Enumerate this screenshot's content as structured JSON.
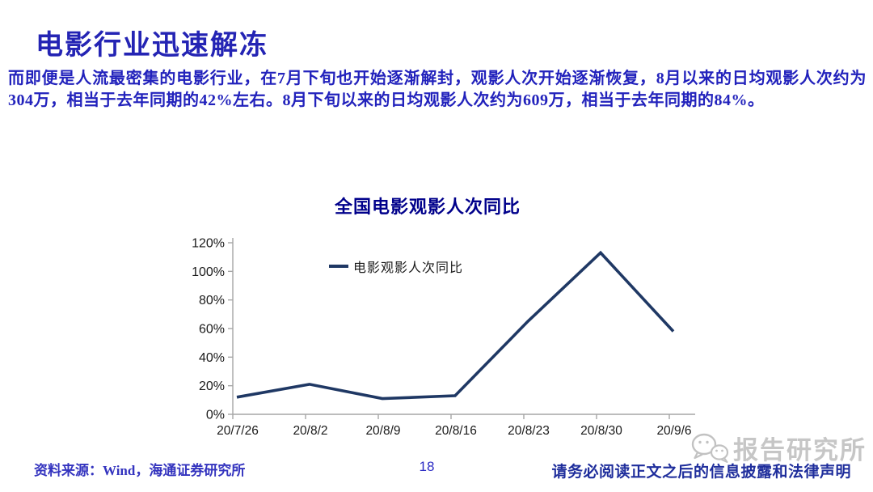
{
  "page": {
    "title": "电影行业迅速解冻",
    "body": "而即便是人流最密集的电影行业，在7月下旬也开始逐渐解封，观影人次开始逐渐恢复，8月以来的日均观影人次约为304万，相当于去年同期的42%左右。8月下旬以来的日均观影人次约为609万，相当于去年同期的84%。"
  },
  "chart_data": {
    "type": "line",
    "title": "全国电影观影人次同比",
    "categories": [
      "20/7/26",
      "20/8/2",
      "20/8/9",
      "20/8/16",
      "20/8/23",
      "20/8/30",
      "20/9/6"
    ],
    "series": [
      {
        "name": "电影观影人次同比",
        "values": [
          12,
          21,
          11,
          13,
          65,
          113,
          58
        ]
      }
    ],
    "ylim": [
      0,
      120
    ],
    "ytick_step": 20,
    "ytick_suffix": "%",
    "grid": false,
    "legend_position": "inside-top-left",
    "line_color": "#1F3864",
    "axis_color": "#A6A6A6",
    "tick_label_color": "#1A1A1A"
  },
  "footer": {
    "source": "资料来源：Wind，海通证券研究所",
    "page_number": "18",
    "disclaimer": "请务必阅读正文之后的信息披露和法律声明",
    "watermark": "报告研究所"
  },
  "colors": {
    "heading_blue": "#2424B4",
    "body_blue": "#2222BC",
    "chart_title_navy": "#00008B",
    "line_navy": "#1F3864",
    "source_blue": "#3434BF",
    "disclaimer_navy": "#1F2E9C",
    "watermark_gray": "#C6C6C6"
  }
}
